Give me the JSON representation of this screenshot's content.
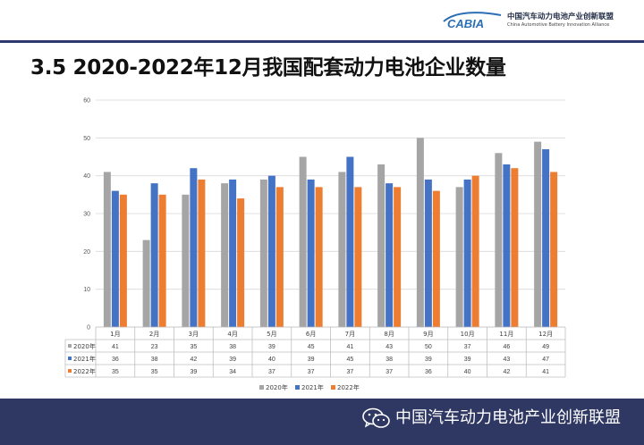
{
  "header": {
    "logo_mark": "CABIA",
    "org_cn": "中国汽车动力电池产业创新联盟",
    "org_en": "China Automotive Battery Innovation Alliance"
  },
  "title": "3.5 2020-2022年12月我国配套动力电池企业数量",
  "chart_data": {
    "type": "bar",
    "title": "",
    "xlabel": "",
    "ylabel": "",
    "ylim": [
      0,
      60
    ],
    "yticks": [
      0,
      10,
      20,
      30,
      40,
      50,
      60
    ],
    "grid": true,
    "legend_position": "bottom",
    "data_table": true,
    "categories": [
      "1月",
      "2月",
      "3月",
      "4月",
      "5月",
      "6月",
      "7月",
      "8月",
      "9月",
      "10月",
      "11月",
      "12月"
    ],
    "series": [
      {
        "name": "2020年",
        "color": "#a5a5a5",
        "values": [
          41,
          23,
          35,
          38,
          39,
          45,
          41,
          43,
          50,
          37,
          46,
          49
        ]
      },
      {
        "name": "2021年",
        "color": "#4472c4",
        "values": [
          36,
          38,
          42,
          39,
          40,
          39,
          45,
          38,
          39,
          39,
          43,
          47
        ]
      },
      {
        "name": "2022年",
        "color": "#ed7d31",
        "values": [
          35,
          35,
          39,
          34,
          37,
          37,
          37,
          37,
          36,
          40,
          42,
          41
        ]
      }
    ]
  },
  "footer": {
    "icon": "wechat-icon",
    "text": "中国汽车动力电池产业创新联盟"
  }
}
